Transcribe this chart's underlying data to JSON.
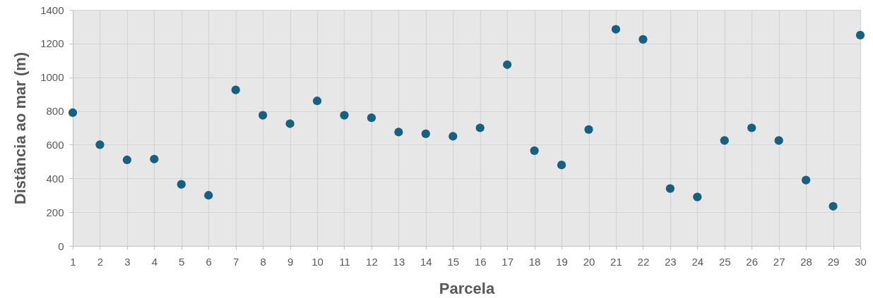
{
  "chart_data": {
    "type": "scatter",
    "xlabel": "Parcela",
    "ylabel": "Distância ao mar (m)",
    "x": [
      1,
      2,
      3,
      4,
      5,
      6,
      7,
      8,
      9,
      10,
      11,
      12,
      13,
      14,
      15,
      16,
      17,
      18,
      19,
      20,
      21,
      22,
      23,
      24,
      25,
      26,
      27,
      28,
      29,
      30
    ],
    "series": [
      {
        "color": "#17607f",
        "values": [
          790,
          600,
          510,
          515,
          365,
          300,
          925,
          775,
          725,
          860,
          775,
          760,
          675,
          665,
          650,
          700,
          1075,
          565,
          480,
          690,
          1285,
          1225,
          340,
          290,
          625,
          700,
          625,
          390,
          235,
          1250
        ]
      }
    ],
    "xlim": [
      1,
      30
    ],
    "ylim": [
      0,
      1400
    ],
    "xticks": [
      1,
      2,
      3,
      4,
      5,
      6,
      7,
      8,
      9,
      10,
      11,
      12,
      13,
      14,
      15,
      16,
      17,
      18,
      19,
      20,
      21,
      22,
      23,
      24,
      25,
      26,
      27,
      28,
      29,
      30
    ],
    "yticks": [
      0,
      200,
      400,
      600,
      800,
      1000,
      1200,
      1400
    ],
    "grid": true,
    "marker": "circle"
  }
}
